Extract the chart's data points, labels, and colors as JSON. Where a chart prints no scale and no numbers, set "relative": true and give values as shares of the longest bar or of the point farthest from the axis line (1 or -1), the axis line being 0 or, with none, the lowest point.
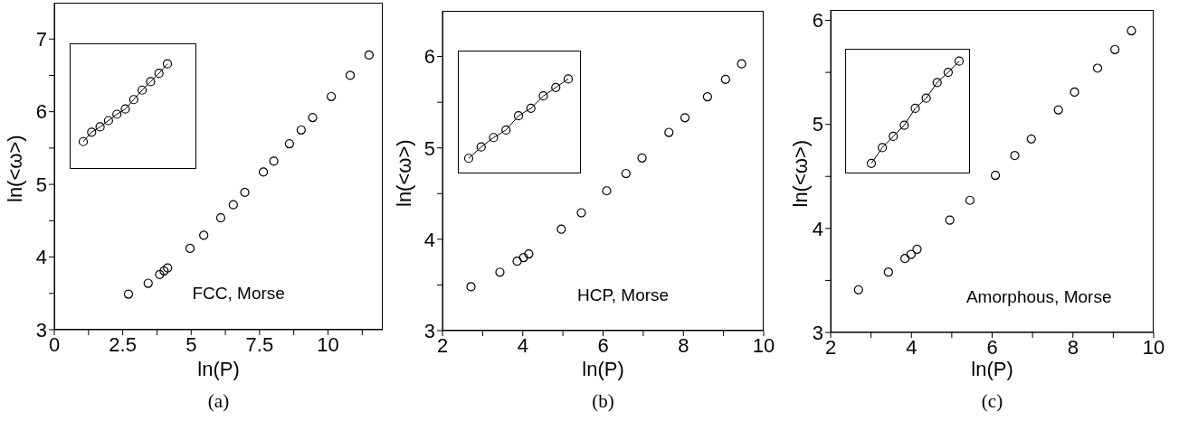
{
  "chart_data": [
    {
      "type": "scatter",
      "xlabel": "ln(P)",
      "ylabel": "ln(<ω>)",
      "color": "#000000",
      "marker": "circle",
      "annotations": [
        "FCC, Morse",
        "(a)"
      ],
      "x": [
        2.71,
        3.43,
        3.85,
        4.01,
        4.14,
        4.96,
        5.46,
        6.08,
        6.54,
        6.96,
        7.64,
        8.02,
        8.59,
        9.02,
        9.44,
        10.12,
        10.81,
        11.5
      ],
      "values": [
        3.49,
        3.64,
        3.76,
        3.81,
        3.85,
        4.12,
        4.3,
        4.54,
        4.72,
        4.89,
        5.17,
        5.32,
        5.56,
        5.75,
        5.92,
        6.21,
        6.5,
        6.78
      ],
      "xlim": [
        0,
        12
      ],
      "ylim": [
        3,
        7.5
      ],
      "xticks": [
        0,
        {
          "value": 1.25,
          "label": null
        },
        2.5,
        {
          "value": 3.75,
          "label": null
        },
        5,
        {
          "value": 6.25,
          "label": null
        },
        7.5,
        {
          "value": 8.75,
          "label": null
        },
        10,
        {
          "value": 11.25,
          "label": null
        }
      ],
      "yticks": [
        3,
        {
          "value": 3.5,
          "label": null
        },
        4,
        {
          "value": 4.5,
          "label": null
        },
        5,
        {
          "value": 5.5,
          "label": null
        },
        6,
        {
          "value": 6.5,
          "label": null
        },
        7
      ]
    },
    {
      "type": "line",
      "relative": true,
      "tick_labels": false,
      "color": "#000000",
      "marker": "circle",
      "categories": [
        null,
        null,
        null,
        null,
        null,
        null,
        null,
        null,
        null,
        null,
        null
      ],
      "values": [
        0.26,
        0.35,
        0.4,
        0.46,
        0.52,
        0.57,
        0.66,
        0.75,
        0.83,
        0.91,
        1
      ]
    },
    {
      "type": "scatter",
      "xlabel": "ln(P)",
      "ylabel": "ln(<ω>)",
      "color": "#000000",
      "marker": "circle",
      "annotations": [
        "HCP, Morse",
        "(b)"
      ],
      "x": [
        2.71,
        3.43,
        3.86,
        4.02,
        4.15,
        4.96,
        5.46,
        6.09,
        6.57,
        6.97,
        7.64,
        8.04,
        8.6,
        9.05,
        9.45
      ],
      "values": [
        3.48,
        3.64,
        3.76,
        3.8,
        3.84,
        4.11,
        4.29,
        4.53,
        4.72,
        4.89,
        5.17,
        5.33,
        5.56,
        5.75,
        5.92
      ],
      "xlim": [
        2,
        10
      ],
      "ylim": [
        3,
        6.5
      ],
      "xticks": [
        2,
        {
          "value": 3,
          "label": null
        },
        4,
        {
          "value": 5,
          "label": null
        },
        6,
        {
          "value": 7,
          "label": null
        },
        8,
        {
          "value": 9,
          "label": null
        },
        10
      ],
      "yticks": [
        3,
        {
          "value": 3.5,
          "label": null
        },
        4,
        {
          "value": 4.5,
          "label": null
        },
        5,
        {
          "value": 5.5,
          "label": null
        },
        6
      ]
    },
    {
      "type": "line",
      "relative": true,
      "tick_labels": false,
      "color": "#000000",
      "marker": "circle",
      "categories": [
        null,
        null,
        null,
        null,
        null,
        null,
        null,
        null,
        null
      ],
      "values": [
        0.16,
        0.28,
        0.38,
        0.46,
        0.61,
        0.69,
        0.82,
        0.91,
        1
      ]
    },
    {
      "type": "scatter",
      "xlabel": "ln(P)",
      "ylabel": "ln(<ω>)",
      "color": "#000000",
      "marker": "circle",
      "annotations": [
        "Amorphous, Morse",
        "(c)"
      ],
      "x": [
        2.69,
        3.43,
        3.84,
        3.99,
        4.14,
        4.95,
        5.45,
        6.08,
        6.56,
        6.97,
        7.64,
        8.04,
        8.61,
        9.04,
        9.45
      ],
      "values": [
        3.41,
        3.58,
        3.71,
        3.75,
        3.8,
        4.08,
        4.27,
        4.51,
        4.7,
        4.86,
        5.14,
        5.31,
        5.54,
        5.72,
        5.9
      ],
      "xlim": [
        2,
        10
      ],
      "ylim": [
        3,
        6.1
      ],
      "xticks": [
        2,
        {
          "value": 3,
          "label": null
        },
        4,
        {
          "value": 5,
          "label": null
        },
        6,
        {
          "value": 7,
          "label": null
        },
        8,
        {
          "value": 9,
          "label": null
        },
        10
      ],
      "yticks": [
        3,
        {
          "value": 3.5,
          "label": null
        },
        4,
        {
          "value": 4.5,
          "label": null
        },
        5,
        {
          "value": 5.5,
          "label": null
        },
        6
      ]
    },
    {
      "type": "line",
      "relative": true,
      "tick_labels": false,
      "color": "#000000",
      "marker": "circle",
      "categories": [
        null,
        null,
        null,
        null,
        null,
        null,
        null,
        null,
        null
      ],
      "values": [
        0.09,
        0.23,
        0.33,
        0.43,
        0.58,
        0.67,
        0.81,
        0.9,
        1
      ]
    }
  ]
}
